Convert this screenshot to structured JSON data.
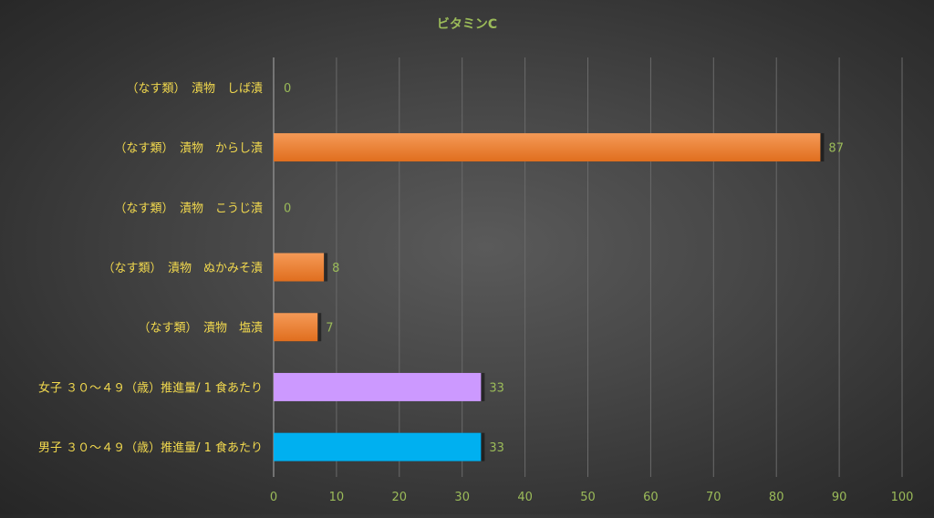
{
  "chart_data": {
    "type": "bar",
    "orientation": "horizontal",
    "title": "ビタミンC",
    "xlabel": "",
    "ylabel": "",
    "xlim": [
      0,
      100
    ],
    "x_ticks": [
      0,
      10,
      20,
      30,
      40,
      50,
      60,
      70,
      80,
      90,
      100
    ],
    "grid": true,
    "legend": "none",
    "categories": [
      "（なす類）　漬物　しば漬",
      "（なす類）　漬物　からし漬",
      "（なす類）　漬物　こうじ漬",
      "（なす類）　漬物　ぬかみそ漬",
      "（なす類）　漬物　塩漬",
      "女子 ３０～４９（歳）推進量/ 1 食あたり",
      "男子 ３０～４９（歳）推進量/ 1 食あたり"
    ],
    "values": [
      0,
      87,
      0,
      8,
      7,
      33,
      33
    ],
    "bar_colors": [
      "#ed7d31",
      "#ed7d31",
      "#ed7d31",
      "#ed7d31",
      "#ed7d31",
      "#cc99ff",
      "#00b0f0"
    ],
    "colors": {
      "title": "#9bbb59",
      "category_label": "#f2d94e",
      "tick_label": "#9bbb59",
      "data_label": "#9bbb59",
      "grid": "#6a6a6a"
    }
  }
}
